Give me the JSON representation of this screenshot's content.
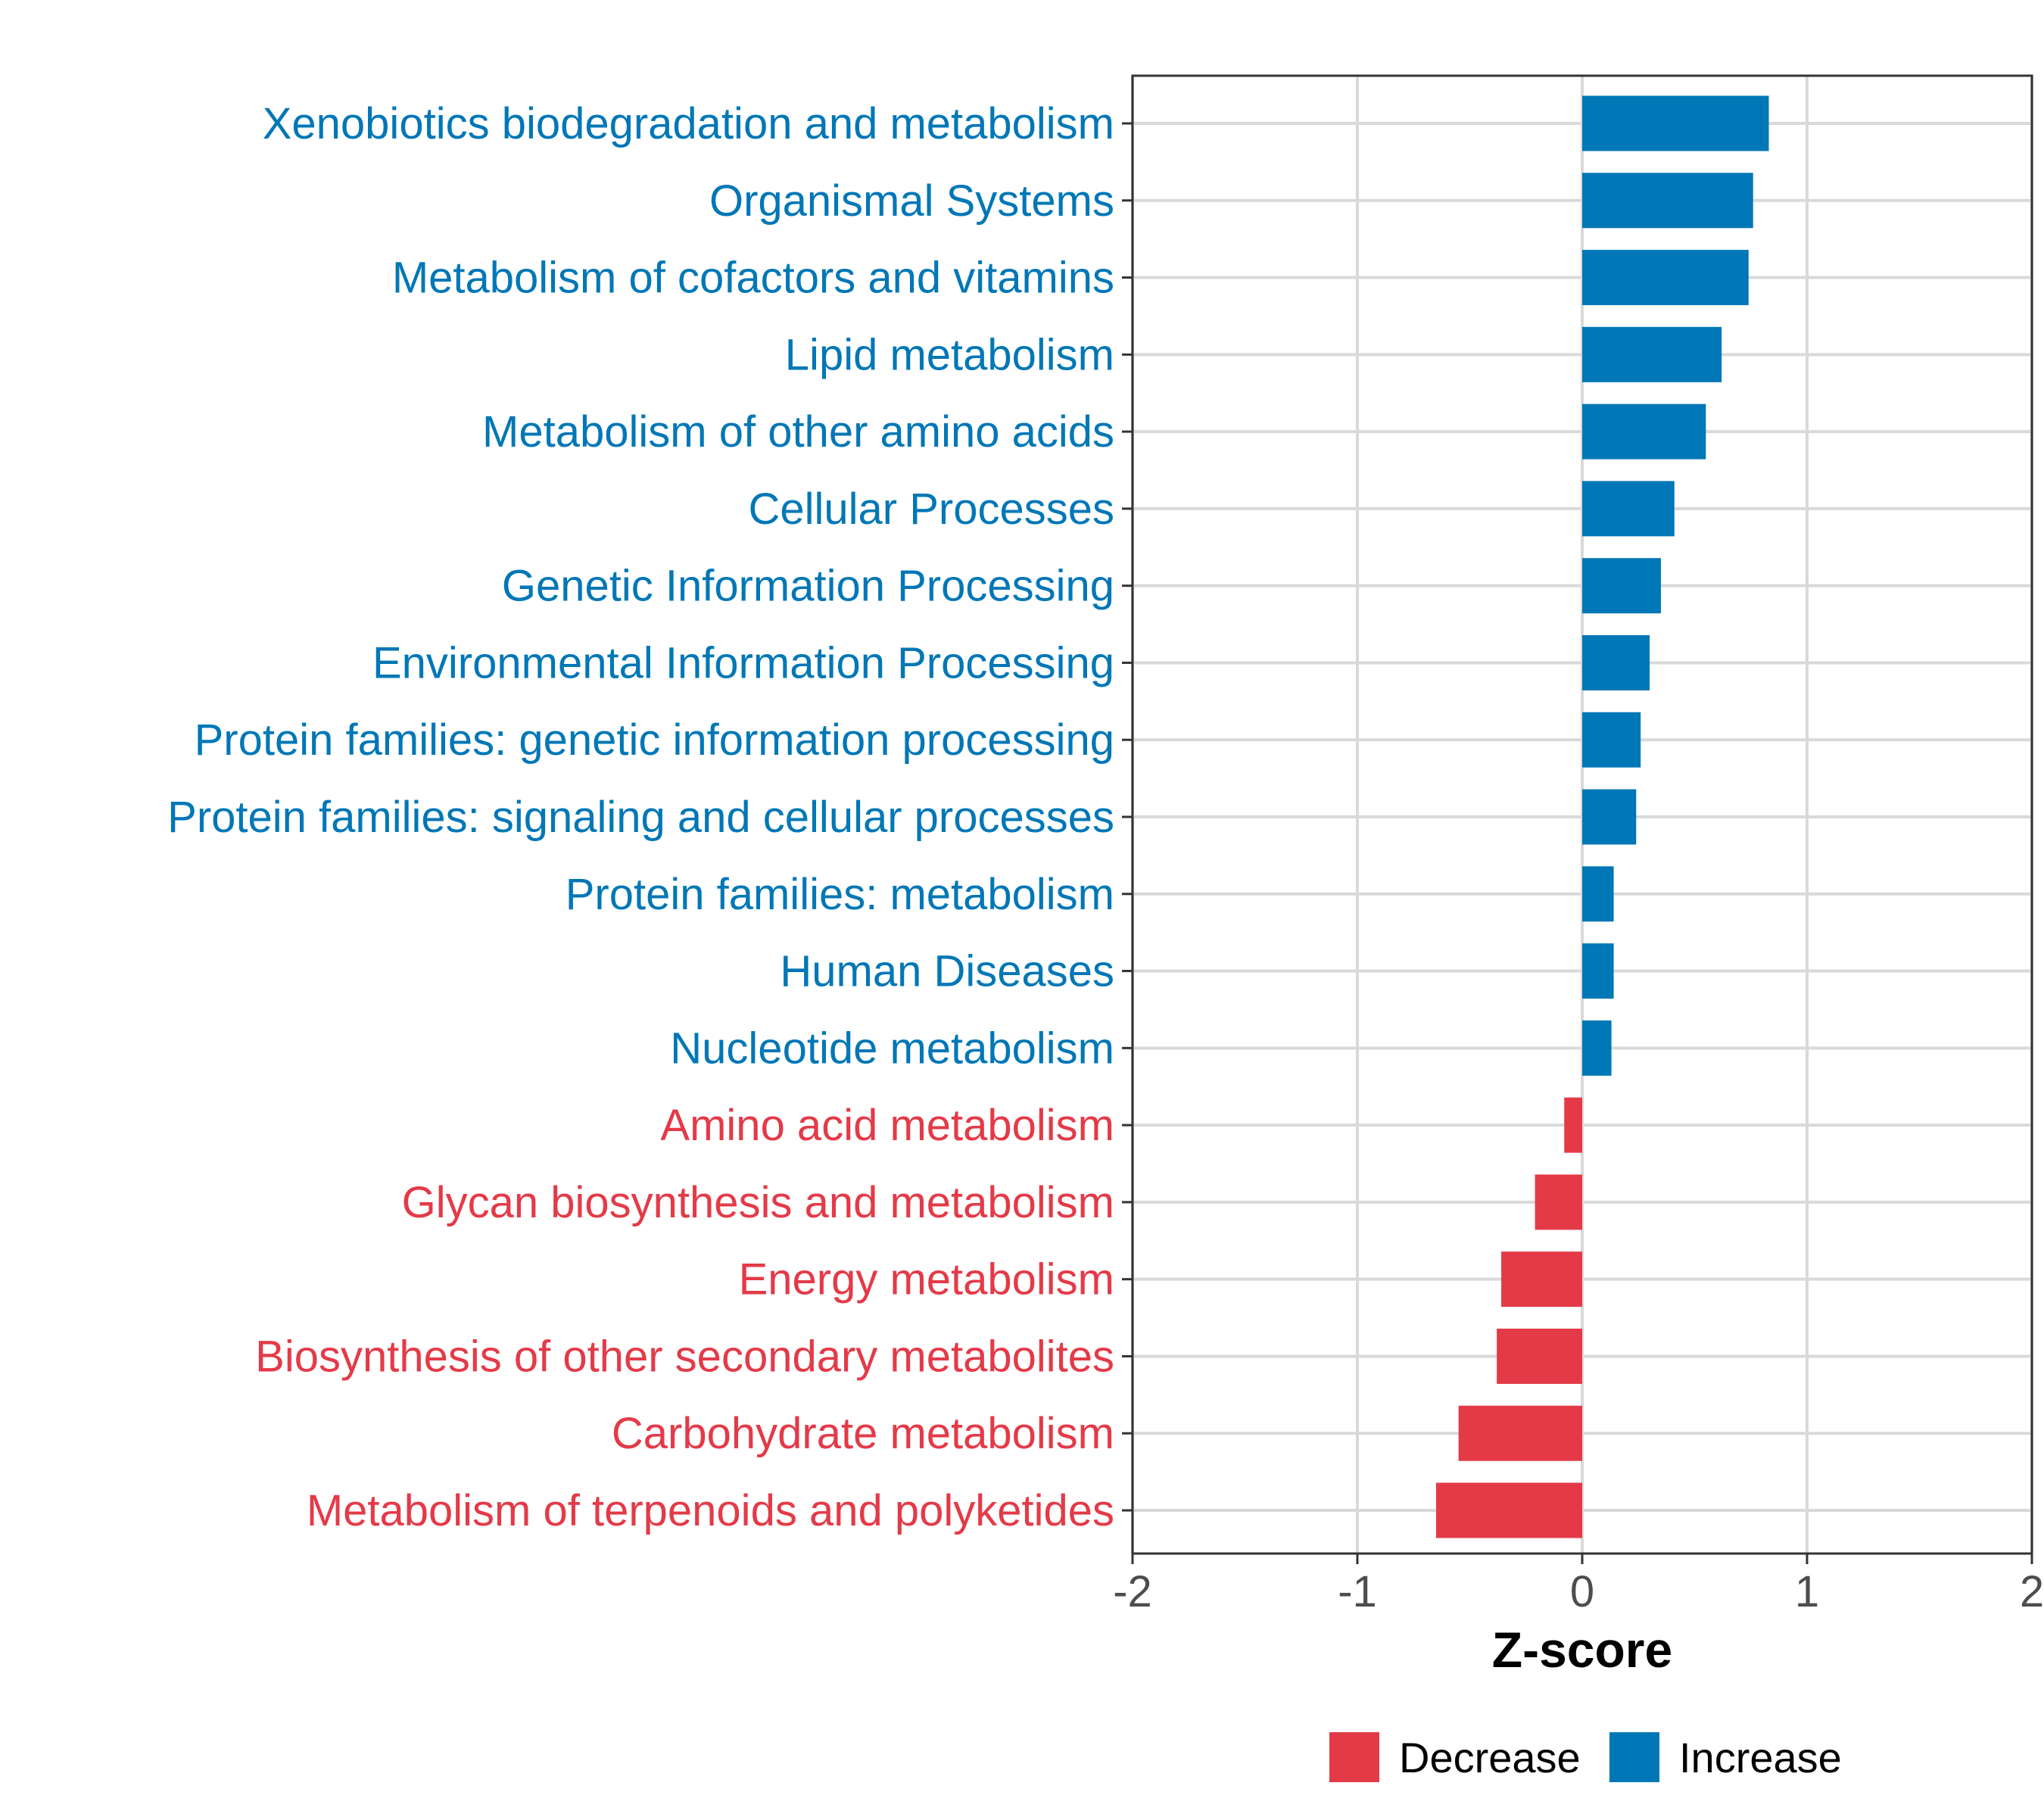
{
  "chart_data": {
    "type": "bar",
    "orientation": "horizontal",
    "title": "",
    "xlabel": "Z-score",
    "ylabel": "",
    "xlim": [
      -2,
      2
    ],
    "xticks": [
      "-2",
      "-1",
      "0",
      "1",
      "2"
    ],
    "xtick_values": [
      -2,
      -1,
      0,
      1,
      2
    ],
    "grid": true,
    "legend_position": "bottom",
    "categories": [
      "Xenobiotics biodegradation and metabolism",
      "Organismal Systems",
      "Metabolism of cofactors and vitamins",
      "Lipid metabolism",
      "Metabolism of other amino acids",
      "Cellular Processes",
      "Genetic Information Processing",
      "Environmental Information Processing",
      "Protein families: genetic information processing",
      "Protein families: signaling and cellular processes",
      "Protein families: metabolism",
      "Human Diseases",
      "Nucleotide metabolism",
      "Amino acid metabolism",
      "Glycan biosynthesis and metabolism",
      "Energy metabolism",
      "Biosynthesis of other secondary metabolites",
      "Carbohydrate metabolism",
      "Metabolism of terpenoids and polyketides"
    ],
    "values": [
      0.83,
      0.76,
      0.74,
      0.62,
      0.55,
      0.41,
      0.35,
      0.3,
      0.26,
      0.24,
      0.14,
      0.14,
      0.13,
      -0.08,
      -0.21,
      -0.36,
      -0.38,
      -0.55,
      -0.65
    ],
    "groups": [
      "Increase",
      "Increase",
      "Increase",
      "Increase",
      "Increase",
      "Increase",
      "Increase",
      "Increase",
      "Increase",
      "Increase",
      "Increase",
      "Increase",
      "Increase",
      "Decrease",
      "Decrease",
      "Decrease",
      "Decrease",
      "Decrease",
      "Decrease"
    ],
    "legend": [
      {
        "name": "Decrease",
        "color": "#E43A48"
      },
      {
        "name": "Increase",
        "color": "#0077B6"
      }
    ],
    "colors": {
      "Decrease": "#E43A48",
      "Increase": "#0077B6"
    }
  }
}
